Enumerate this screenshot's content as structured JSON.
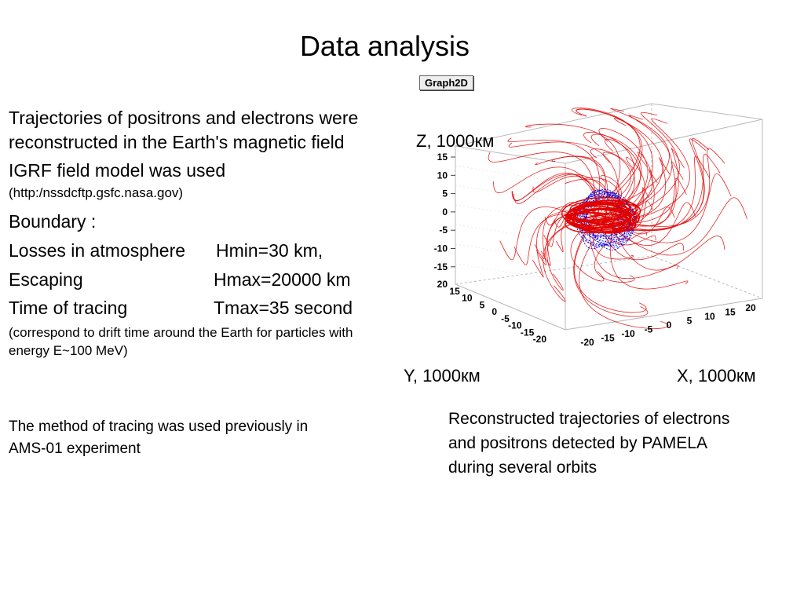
{
  "title": "Data analysis",
  "left": {
    "line1": "Trajectories of  positrons and electrons were",
    "line2": "reconstructed in the Earth's magnetic field",
    "line3": "IGRF field model was used",
    "line4": "(http:/nssdcftp.gsfc.nasa.gov)",
    "line5": "Boundary :",
    "losses_label": "Losses in atmosphere",
    "losses_value": "Hmin=30 km,",
    "escaping_label": "Escaping",
    "escaping_value": "Hmax=20000 km",
    "time_label": "Time of tracing",
    "time_value": "Tmax=35 second",
    "note1": "(correspond to drift time around the Earth for particles with",
    "note2": "energy E~100 MeV)",
    "method1": "The method of tracing  was used previously in",
    "method2": "AMS-01 experiment"
  },
  "figure": {
    "badge": "Graph2D",
    "z_label": "Z, 1000км",
    "y_label": "Y, 1000км",
    "x_label": "X, 1000км",
    "z_ticks": [
      "15",
      "10",
      "5",
      "0",
      "-5",
      "-10",
      "-15"
    ],
    "y_ticks": [
      "20",
      "15",
      "10",
      "5",
      "0",
      "-5",
      "-10",
      "-15",
      "-20"
    ],
    "x_ticks": [
      "-20",
      "-15",
      "-10",
      "-5",
      "0",
      "5",
      "10",
      "15",
      "20"
    ],
    "electron_color": "#e00000",
    "positron_color": "#0000e0"
  },
  "caption": {
    "line1": "Reconstructed trajectories of electrons",
    "line2": "and positrons  detected by PAMELA",
    "line3": "during several orbits"
  }
}
